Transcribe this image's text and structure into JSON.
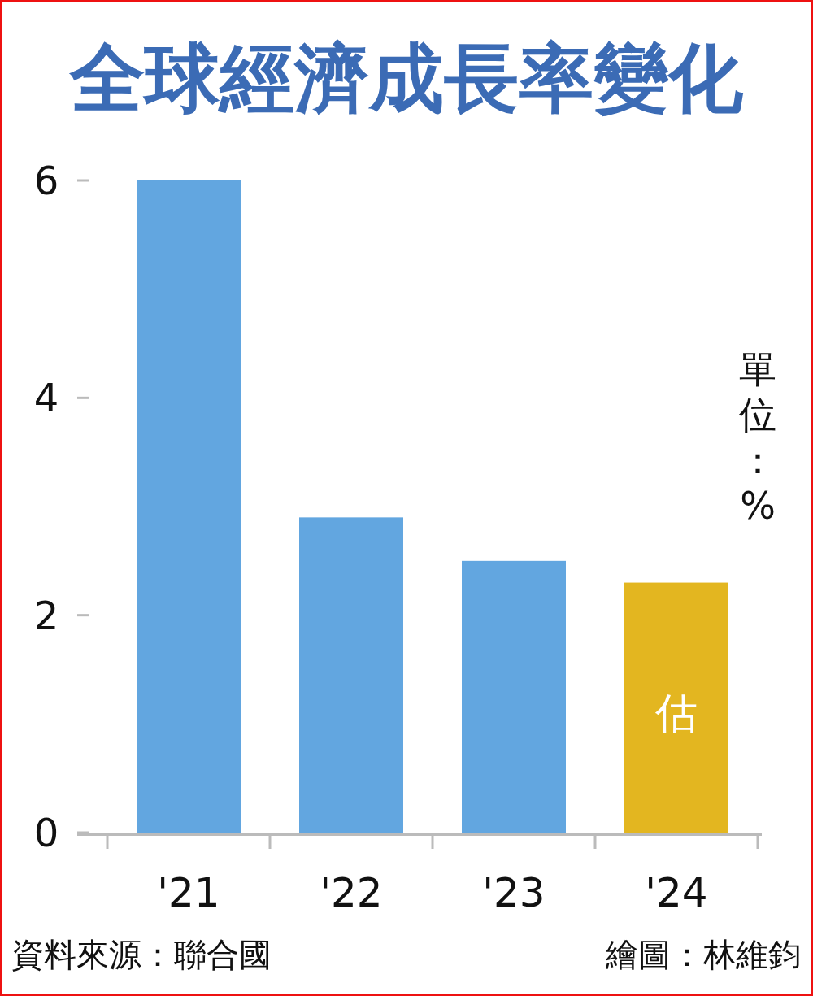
{
  "chart_data": {
    "type": "bar",
    "title": "全球經濟成長率變化",
    "categories": [
      "'21",
      "'22",
      "'23",
      "'24"
    ],
    "values": [
      6.0,
      2.9,
      2.5,
      2.3
    ],
    "colors": [
      "#62a6e0",
      "#62a6e0",
      "#62a6e0",
      "#e3b620"
    ],
    "ylim": [
      0,
      6
    ],
    "yticks": [
      0,
      2,
      4,
      6
    ],
    "grid": false,
    "annotations": [
      "單位：%",
      "資料來源：聯合國",
      "繪圖：林維鈞",
      "估"
    ]
  }
}
